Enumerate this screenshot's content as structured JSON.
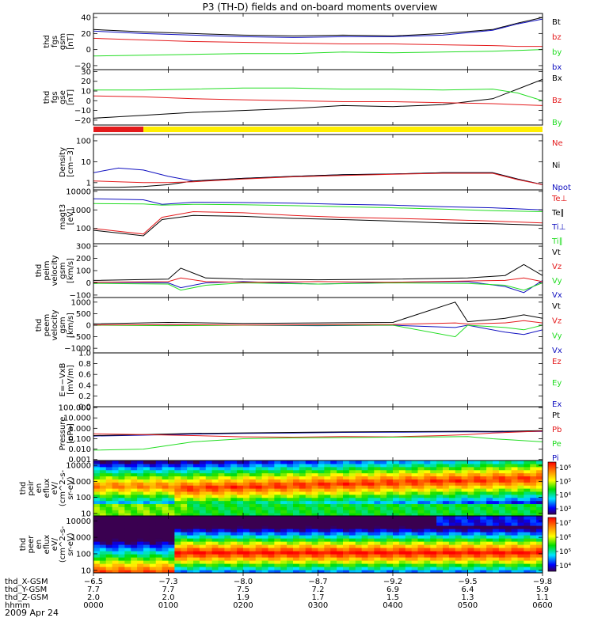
{
  "title": "P3 (TH-D) fields and on-board moments overview",
  "date_label": "2009 Apr 24",
  "colors": {
    "black": "#000000",
    "red": "#e41a1c",
    "green": "#22dd22",
    "blue": "#1010c0",
    "yellow": "#ffee00"
  },
  "chart_data": [
    {
      "id": "fgs_gsm",
      "type": "line",
      "ylabel": [
        "thd",
        "fgs",
        "gsm",
        "[nT]"
      ],
      "ylim": [
        -25,
        45
      ],
      "yticks": [
        -20,
        0,
        20,
        40
      ],
      "ytick_labels": [
        "−20",
        "0",
        "20",
        "40"
      ],
      "legend": [
        {
          "name": "Bt",
          "color": "black"
        },
        {
          "name": "bz",
          "color": "red"
        },
        {
          "name": "by",
          "color": "green"
        },
        {
          "name": "bx",
          "color": "blue"
        }
      ],
      "x": [
        0,
        40,
        80,
        120,
        160,
        200,
        240,
        280,
        320,
        340,
        360
      ],
      "series": [
        {
          "name": "Bt",
          "color": "black",
          "values": [
            25,
            22,
            20,
            18,
            17,
            18,
            17,
            20,
            25,
            33,
            40
          ]
        },
        {
          "name": "bx",
          "color": "blue",
          "values": [
            23,
            20,
            18,
            16,
            15,
            16,
            16,
            18,
            24,
            32,
            38
          ]
        },
        {
          "name": "bz",
          "color": "red",
          "values": [
            14,
            12,
            10,
            9,
            8,
            7,
            7,
            6,
            5,
            4,
            4
          ]
        },
        {
          "name": "by",
          "color": "green",
          "values": [
            -8,
            -7,
            -6,
            -5,
            -5,
            -3,
            -4,
            -3,
            -2,
            -1,
            0
          ]
        }
      ]
    },
    {
      "id": "fgs_gse",
      "type": "line",
      "ylabel": [
        "thd",
        "fgs",
        "gse",
        "[nT]"
      ],
      "ylim": [
        -25,
        32
      ],
      "yticks": [
        -20,
        -10,
        0,
        10,
        20,
        30
      ],
      "ytick_labels": [
        "−20",
        "−10",
        "0",
        "10",
        "20",
        "30"
      ],
      "legend": [
        {
          "name": "Bx",
          "color": "black"
        },
        {
          "name": "Bz",
          "color": "red"
        },
        {
          "name": "By",
          "color": "green"
        }
      ],
      "x": [
        0,
        40,
        80,
        120,
        160,
        200,
        240,
        280,
        320,
        340,
        360
      ],
      "series": [
        {
          "name": "Bx",
          "color": "black",
          "values": [
            -18,
            -15,
            -12,
            -10,
            -8,
            -5,
            -6,
            -4,
            2,
            12,
            22
          ]
        },
        {
          "name": "Bz",
          "color": "red",
          "values": [
            5,
            4,
            2,
            1,
            0,
            -1,
            -1,
            -2,
            -3,
            -4,
            -5
          ]
        },
        {
          "name": "By",
          "color": "green",
          "values": [
            11,
            11,
            12,
            13,
            13,
            12,
            12,
            11,
            12,
            8,
            0
          ]
        }
      ]
    },
    {
      "id": "mode_bar",
      "type": "table",
      "segments": [
        {
          "x": [
            0,
            40
          ],
          "color": "red"
        },
        {
          "x": [
            40,
            360
          ],
          "color": "yellow"
        }
      ]
    },
    {
      "id": "density",
      "type": "line",
      "ylog": true,
      "ylabel": [
        "Density",
        "[cm−3]"
      ],
      "ylim": [
        0.45,
        200
      ],
      "yticks": [
        1,
        10,
        100
      ],
      "ytick_labels": [
        "1",
        "10",
        "100"
      ],
      "legend": [
        {
          "name": "Ne",
          "color": "red"
        },
        {
          "name": "Ni",
          "color": "black"
        },
        {
          "name": "Npot",
          "color": "blue"
        }
      ],
      "x": [
        0,
        20,
        40,
        60,
        80,
        120,
        160,
        200,
        240,
        280,
        320,
        340,
        360
      ],
      "series": [
        {
          "name": "Npot",
          "color": "blue",
          "values": [
            3,
            5,
            4,
            2,
            1.2,
            1.6,
            2,
            2.4,
            2.6,
            3,
            3,
            1.5,
            0.8
          ]
        },
        {
          "name": "Ni",
          "color": "black",
          "values": [
            0.6,
            0.6,
            0.65,
            0.8,
            1.2,
            1.6,
            2,
            2.4,
            2.6,
            3,
            3,
            1.5,
            0.8
          ]
        },
        {
          "name": "Ne",
          "color": "red",
          "values": [
            1.2,
            1.1,
            1.0,
            1.0,
            1.1,
            1.5,
            1.9,
            2.2,
            2.5,
            2.8,
            2.8,
            1.4,
            0.8
          ]
        }
      ]
    },
    {
      "id": "temperature",
      "type": "line",
      "ylog": true,
      "ylabel": [
        "magt3",
        "[eV]"
      ],
      "ylim": [
        15,
        12000
      ],
      "yticks": [
        100,
        1000,
        10000
      ],
      "ytick_labels": [
        "100",
        "1000",
        "10000"
      ],
      "legend": [
        {
          "name": "Te⊥",
          "color": "red"
        },
        {
          "name": "Te∥",
          "color": "black"
        },
        {
          "name": "Ti⊥",
          "color": "blue"
        },
        {
          "name": "Ti∥",
          "color": "green"
        }
      ],
      "x": [
        0,
        40,
        55,
        80,
        120,
        160,
        200,
        240,
        280,
        320,
        360
      ],
      "series": [
        {
          "name": "Ti⊥",
          "color": "blue",
          "values": [
            4000,
            3500,
            2000,
            2600,
            2500,
            2300,
            2000,
            1800,
            1500,
            1300,
            1000
          ]
        },
        {
          "name": "Ti∥",
          "color": "green",
          "values": [
            2200,
            2100,
            1800,
            2000,
            1900,
            1700,
            1500,
            1300,
            1100,
            900,
            800
          ]
        },
        {
          "name": "Te⊥",
          "color": "red",
          "values": [
            100,
            50,
            400,
            800,
            700,
            500,
            400,
            350,
            300,
            250,
            200
          ]
        },
        {
          "name": "Te∥",
          "color": "black",
          "values": [
            80,
            40,
            300,
            500,
            450,
            350,
            300,
            250,
            200,
            180,
            150
          ]
        }
      ]
    },
    {
      "id": "peim_velocity",
      "type": "line",
      "ylabel": [
        "thd",
        "peim",
        "velocity",
        "gsm",
        "[km/s]"
      ],
      "ylim": [
        -120,
        320
      ],
      "yticks": [
        -100,
        0,
        100,
        200,
        300
      ],
      "ytick_labels": [
        "−100",
        "0",
        "100",
        "200",
        "300"
      ],
      "legend": [
        {
          "name": "Vt",
          "color": "black"
        },
        {
          "name": "Vz",
          "color": "red"
        },
        {
          "name": "Vy",
          "color": "green"
        },
        {
          "name": "Vx",
          "color": "blue"
        }
      ],
      "x": [
        0,
        60,
        70,
        90,
        120,
        180,
        240,
        300,
        330,
        345,
        360
      ],
      "series": [
        {
          "name": "Vx",
          "color": "blue",
          "values": [
            5,
            0,
            -40,
            0,
            10,
            -10,
            5,
            10,
            -30,
            -80,
            20
          ]
        },
        {
          "name": "Vy",
          "color": "green",
          "values": [
            -5,
            -10,
            -60,
            -20,
            0,
            -10,
            0,
            -5,
            -20,
            -60,
            0
          ]
        },
        {
          "name": "Vz",
          "color": "red",
          "values": [
            5,
            10,
            40,
            10,
            5,
            10,
            5,
            15,
            20,
            40,
            10
          ]
        },
        {
          "name": "Vt",
          "color": "black",
          "values": [
            20,
            30,
            120,
            40,
            30,
            25,
            30,
            40,
            60,
            150,
            60
          ]
        }
      ]
    },
    {
      "id": "peem_velocity",
      "type": "line",
      "ylabel": [
        "thd",
        "peem",
        "velocity",
        "gsm",
        "[km/s]"
      ],
      "ylim": [
        -1200,
        1200
      ],
      "yticks": [
        -1000,
        -500,
        0,
        500,
        1000
      ],
      "ytick_labels": [
        "−1000",
        "−500",
        "0",
        "500",
        "1000"
      ],
      "legend": [
        {
          "name": "Vt",
          "color": "black"
        },
        {
          "name": "Vz",
          "color": "red"
        },
        {
          "name": "Vy",
          "color": "green"
        },
        {
          "name": "Vx",
          "color": "blue"
        }
      ],
      "x": [
        0,
        60,
        120,
        180,
        240,
        290,
        300,
        330,
        345,
        360
      ],
      "series": [
        {
          "name": "Vx",
          "color": "blue",
          "values": [
            0,
            10,
            0,
            -20,
            0,
            -100,
            0,
            -300,
            -400,
            -200
          ]
        },
        {
          "name": "Vy",
          "color": "green",
          "values": [
            0,
            -20,
            0,
            0,
            0,
            -500,
            0,
            -100,
            -200,
            0
          ]
        },
        {
          "name": "Vz",
          "color": "red",
          "values": [
            10,
            20,
            10,
            20,
            30,
            100,
            50,
            100,
            200,
            100
          ]
        },
        {
          "name": "Vt",
          "color": "black",
          "values": [
            60,
            120,
            80,
            100,
            120,
            1000,
            150,
            300,
            450,
            300
          ]
        }
      ]
    },
    {
      "id": "efield",
      "type": "line",
      "ylabel": [
        "E=−VxB",
        "[mV/m]"
      ],
      "ylim": [
        0,
        1
      ],
      "yticks": [
        0.0,
        0.2,
        0.4,
        0.6,
        0.8,
        1.0
      ],
      "ytick_labels": [
        "0.0",
        "0.2",
        "0.4",
        "0.6",
        "0.8",
        "1.0"
      ],
      "legend": [
        {
          "name": "Ez",
          "color": "red"
        },
        {
          "name": "Ey",
          "color": "green"
        },
        {
          "name": "Ex",
          "color": "blue"
        }
      ],
      "x": [],
      "series": []
    },
    {
      "id": "pressure",
      "type": "line",
      "ylog": true,
      "ylabel": [
        "Pressure",
        "[nPa]"
      ],
      "ylim": [
        0.0008,
        120
      ],
      "yticks": [
        0.001,
        0.01,
        0.1,
        1,
        10,
        100
      ],
      "ytick_labels": [
        "0.001",
        "0.010",
        "0.100",
        "1.000",
        "10.000",
        "100.000"
      ],
      "legend": [
        {
          "name": "Pt",
          "color": "black"
        },
        {
          "name": "Pb",
          "color": "red"
        },
        {
          "name": "Pe",
          "color": "green"
        },
        {
          "name": "Pi",
          "color": "blue"
        }
      ],
      "x": [
        0,
        40,
        80,
        120,
        160,
        200,
        240,
        280,
        300,
        320,
        360
      ],
      "series": [
        {
          "name": "Pi",
          "color": "blue",
          "values": [
            0.18,
            0.22,
            0.28,
            0.32,
            0.35,
            0.4,
            0.42,
            0.45,
            0.46,
            0.45,
            0.5
          ]
        },
        {
          "name": "Pt",
          "color": "black",
          "values": [
            0.2,
            0.25,
            0.32,
            0.36,
            0.4,
            0.45,
            0.48,
            0.5,
            0.52,
            0.5,
            0.6
          ]
        },
        {
          "name": "Pb",
          "color": "red",
          "values": [
            0.3,
            0.25,
            0.2,
            0.15,
            0.14,
            0.16,
            0.15,
            0.2,
            0.25,
            0.35,
            0.55
          ]
        },
        {
          "name": "Pe",
          "color": "green",
          "values": [
            0.008,
            0.01,
            0.05,
            0.1,
            0.12,
            0.13,
            0.14,
            0.15,
            0.16,
            0.1,
            0.05
          ]
        }
      ]
    },
    {
      "id": "peir_spectrogram",
      "type": "heatmap",
      "ylog": true,
      "ylabel": [
        "thd",
        "peir",
        "en",
        "eflux",
        "eV/",
        "(cm^2-s-",
        "sr-eV)"
      ],
      "ylim": [
        7,
        20000
      ],
      "yticks": [
        10,
        100,
        1000,
        10000
      ],
      "ytick_labels": [
        "10",
        "100",
        "1000",
        "10000"
      ],
      "colorbar_ticks": [
        "10³",
        "10⁴",
        "10⁵",
        "10⁶"
      ],
      "colorbar_log_range": [
        2.6,
        6.4
      ]
    },
    {
      "id": "peer_spectrogram",
      "type": "heatmap",
      "ylog": true,
      "ylabel": [
        "thd",
        "peer",
        "en",
        "eflux",
        "eV/",
        "(cm^2-s-",
        "sr-eV)"
      ],
      "ylim": [
        7,
        20000
      ],
      "yticks": [
        10,
        100,
        1000,
        10000
      ],
      "ytick_labels": [
        "10",
        "100",
        "1000",
        "10000"
      ],
      "colorbar_ticks": [
        "10⁴",
        "10⁵",
        "10⁶",
        "10⁷"
      ],
      "colorbar_log_range": [
        3.6,
        7.4
      ]
    }
  ],
  "xaxis": {
    "ticks": [
      0,
      60,
      120,
      180,
      240,
      300,
      360
    ],
    "rows": [
      {
        "label": "thd_X-GSM",
        "values": [
          "−6.5",
          "−7.3",
          "−8.0",
          "−8.7",
          "−9.2",
          "−9.5",
          "−9.8"
        ]
      },
      {
        "label": "thd_Y-GSM",
        "values": [
          "7.7",
          "7.7",
          "7.5",
          "7.2",
          "6.9",
          "6.4",
          "5.9"
        ]
      },
      {
        "label": "thd_Z-GSM",
        "values": [
          "2.0",
          "2.0",
          "1.9",
          "1.7",
          "1.5",
          "1.3",
          "1.1"
        ]
      },
      {
        "label": "hhmm",
        "values": [
          "0000",
          "0100",
          "0200",
          "0300",
          "0400",
          "0500",
          "0600"
        ]
      }
    ]
  }
}
